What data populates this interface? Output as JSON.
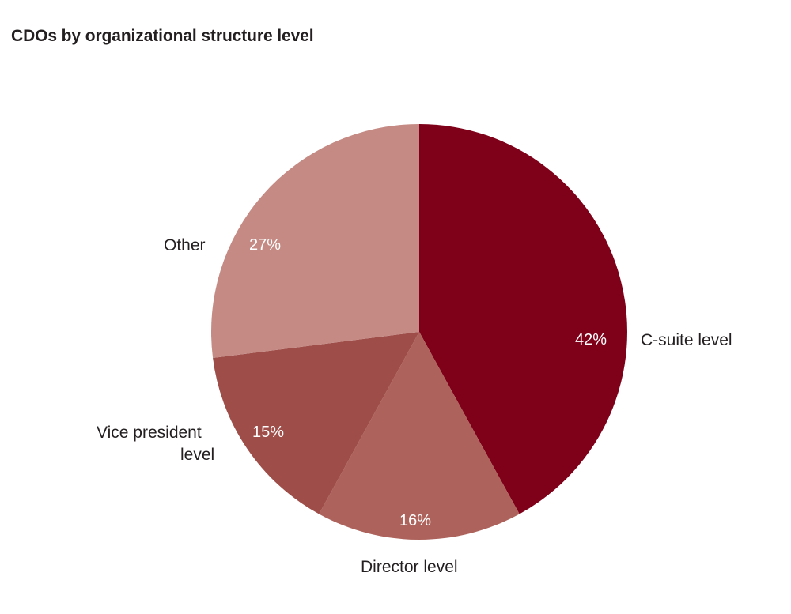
{
  "title": "CDOs by organizational structure level",
  "chart_data": {
    "type": "pie",
    "title": "CDOs by organizational structure level",
    "start_angle": "12 o'clock, clockwise",
    "categories": [
      "C-suite level",
      "Director level",
      "Vice president level",
      "Other"
    ],
    "values": [
      42,
      16,
      15,
      27
    ],
    "value_labels": [
      "42%",
      "16%",
      "15%",
      "27%"
    ],
    "colors": [
      "#7e0019",
      "#ad635b",
      "#9e4d48",
      "#c48a83"
    ],
    "legend": "none (direct labels)"
  },
  "labels": {
    "csuite": "C-suite level",
    "director": "Director level",
    "vp_line1": "Vice president",
    "vp_line2": "level",
    "other": "Other"
  },
  "percents": {
    "csuite": "42%",
    "director": "16%",
    "vp": "15%",
    "other": "27%"
  }
}
